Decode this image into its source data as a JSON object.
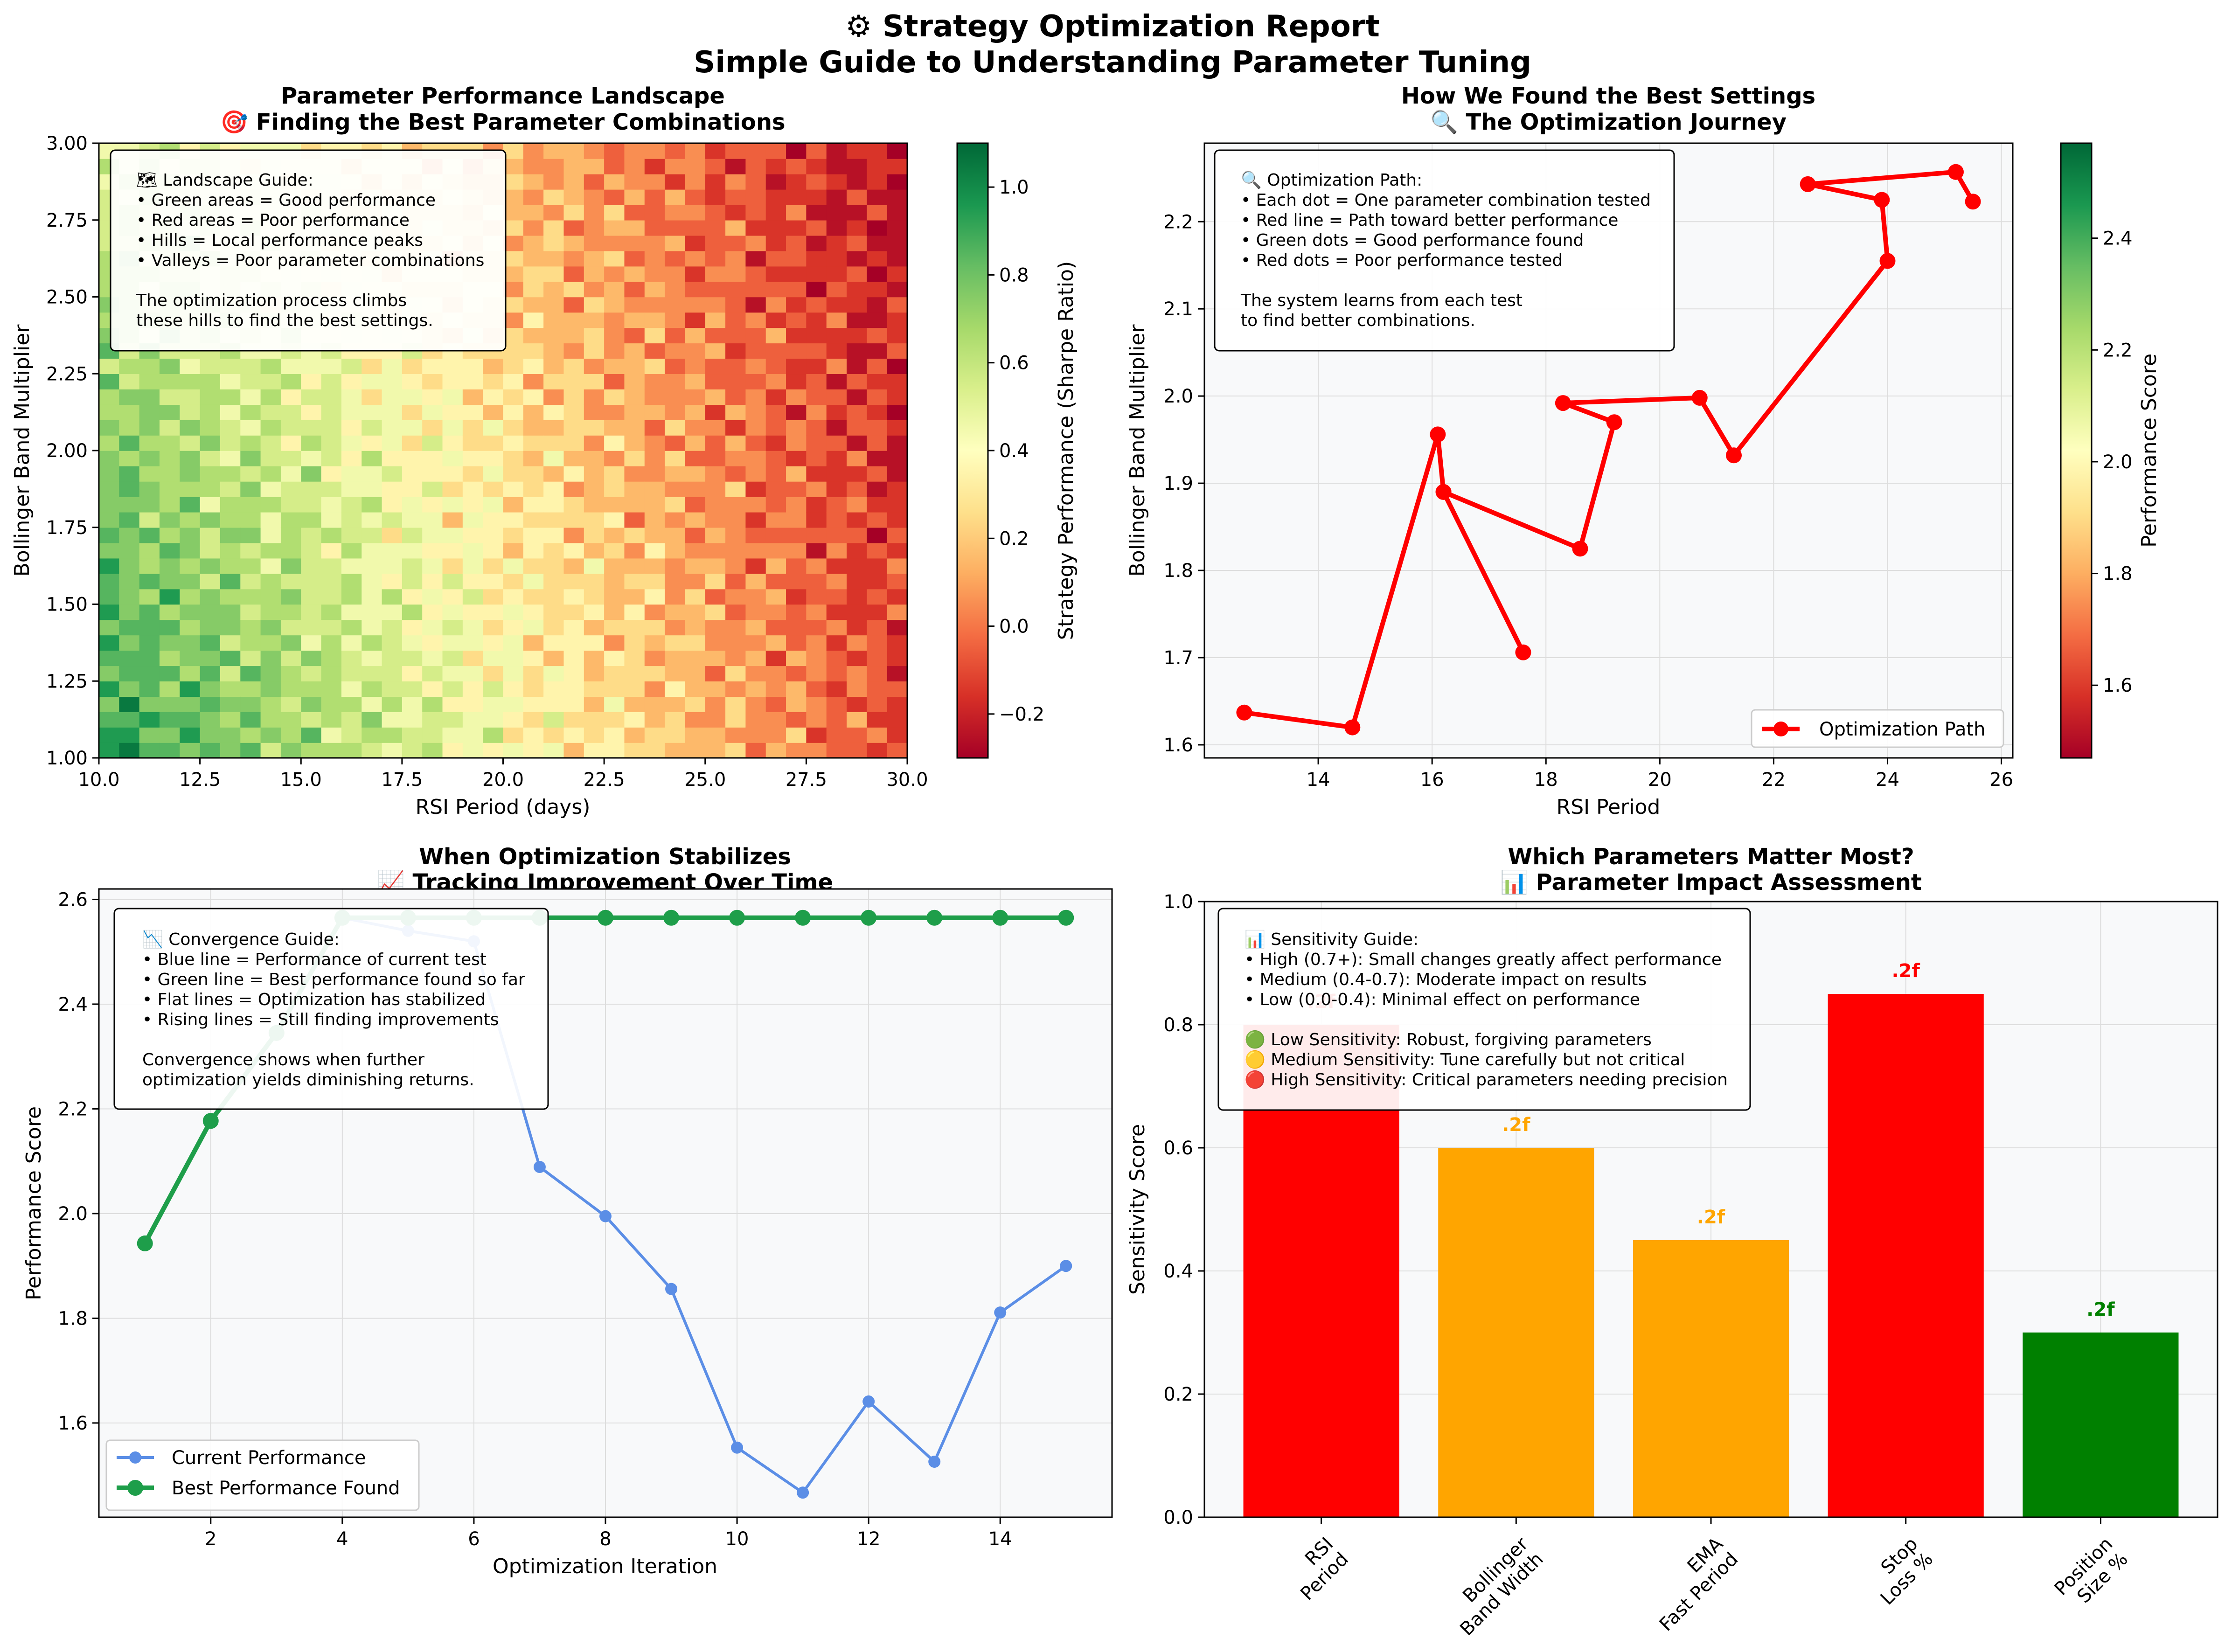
{
  "suptitle": {
    "line1": "⚙ Strategy Optimization Report",
    "line2": "Simple Guide to Understanding Parameter Tuning"
  },
  "colors": {
    "plot_bg": "#f8f9fa",
    "grid": "#dddddd",
    "path_red": "#ff0000",
    "current_blue": "#5b8ee6",
    "best_green": "#1e9e4a",
    "high": "#ff0000",
    "medium": "#ffa500",
    "low": "#008000",
    "colormap": [
      "#a50026",
      "#d73027",
      "#f46d43",
      "#fdae61",
      "#fee08b",
      "#ffffbf",
      "#d9ef8b",
      "#a6d96a",
      "#66bd63",
      "#1a9850",
      "#006837"
    ]
  },
  "panels": {
    "landscape": {
      "title1": "Parameter Performance Landscape",
      "title2": "🎯 Finding the Best Parameter Combinations",
      "xlabel": "RSI Period (days)",
      "ylabel": "Bollinger Band Multiplier",
      "colorbar_label": "Strategy Performance (Sharpe Ratio)",
      "info": [
        "🗺 Landscape Guide:",
        "• Green areas = Good performance",
        "• Red areas = Poor performance",
        "• Hills = Local performance peaks",
        "• Valleys = Poor parameter combinations",
        "",
        "The optimization process climbs",
        "these hills to find the best settings."
      ]
    },
    "path": {
      "title1": "How We Found the Best Settings",
      "title2": "🔍 The Optimization Journey",
      "xlabel": "RSI Period",
      "ylabel": "Bollinger Band Multiplier",
      "colorbar_label": "Performance Score",
      "legend": "Optimization Path",
      "info": [
        "🔍 Optimization Path:",
        "• Each dot = One parameter combination tested",
        "• Red line = Path toward better performance",
        "• Green dots = Good performance found",
        "• Red dots = Poor performance tested",
        "",
        "The system learns from each test",
        "to find better combinations."
      ]
    },
    "convergence": {
      "title1": "When Optimization Stabilizes",
      "title2": "📈 Tracking Improvement Over Time",
      "xlabel": "Optimization Iteration",
      "ylabel": "Performance Score",
      "legend_current": "Current Performance",
      "legend_best": "Best Performance Found",
      "info": [
        "📉 Convergence Guide:",
        "• Blue line = Performance of current test",
        "• Green line = Best performance found so far",
        "• Flat lines = Optimization has stabilized",
        "• Rising lines = Still finding improvements",
        "",
        "Convergence shows when further",
        "optimization yields diminishing returns."
      ]
    },
    "sensitivity": {
      "title1": "Which Parameters Matter Most?",
      "title2": "📊 Parameter Impact Assessment",
      "ylabel": "Sensitivity Score",
      "info": [
        "📊 Sensitivity Guide:",
        "• High (0.7+): Small changes greatly affect performance",
        "• Medium (0.4-0.7): Moderate impact on results",
        "• Low (0.0-0.4): Minimal effect on performance",
        "",
        "🟢 Low Sensitivity: Robust, forgiving parameters",
        "🟡 Medium Sensitivity: Tune carefully but not critical",
        "🔴 High Sensitivity: Critical parameters needing precision"
      ]
    }
  },
  "chart_data": [
    {
      "type": "heatmap",
      "title": "Parameter Performance Landscape",
      "xlabel": "RSI Period (days)",
      "ylabel": "Bollinger Band Multiplier",
      "xlim": [
        10,
        30
      ],
      "ylim": [
        1.0,
        3.0
      ],
      "xticks": [
        "10.0",
        "12.5",
        "15.0",
        "17.5",
        "20.0",
        "22.5",
        "25.0",
        "27.5",
        "30.0"
      ],
      "yticks": [
        "1.00",
        "1.25",
        "1.50",
        "1.75",
        "2.00",
        "2.25",
        "2.50",
        "2.75",
        "3.00"
      ],
      "colorbar_range": [
        -0.3,
        1.1
      ],
      "colorbar_ticks": [
        "−0.2",
        "0.0",
        "0.2",
        "0.4",
        "0.6",
        "0.8",
        "1.0"
      ],
      "description_free": true
    },
    {
      "type": "line",
      "title": "How We Found the Best Settings",
      "xlabel": "RSI Period",
      "ylabel": "Bollinger Band Multiplier",
      "xlim": [
        12.0,
        26.2
      ],
      "ylim": [
        1.585,
        2.29
      ],
      "xticks": [
        "14",
        "16",
        "18",
        "20",
        "22",
        "24",
        "26"
      ],
      "yticks": [
        "1.6",
        "1.7",
        "1.8",
        "1.9",
        "2.0",
        "2.1",
        "2.2"
      ],
      "colorbar_range": [
        1.47,
        2.57
      ],
      "colorbar_ticks": [
        "1.6",
        "1.8",
        "2.0",
        "2.2",
        "2.4"
      ],
      "series": [
        {
          "name": "Optimization Path",
          "x": [
            12.7,
            14.6,
            16.1,
            16.2,
            17.6,
            16.2,
            18.6,
            19.2,
            18.3,
            20.7,
            21.3,
            24.0,
            23.9,
            22.6,
            25.2,
            25.5
          ],
          "y": [
            1.637,
            1.62,
            1.956,
            1.89,
            1.706,
            1.89,
            1.825,
            1.97,
            1.992,
            1.998,
            1.932,
            2.155,
            2.225,
            2.243,
            2.257,
            2.223
          ]
        }
      ]
    },
    {
      "type": "line",
      "title": "When Optimization Stabilizes",
      "xlabel": "Optimization Iteration",
      "ylabel": "Performance Score",
      "xlim": [
        0.3,
        15.7
      ],
      "ylim": [
        1.42,
        2.62
      ],
      "xticks": [
        "2",
        "4",
        "6",
        "8",
        "10",
        "12",
        "14"
      ],
      "yticks": [
        "1.6",
        "1.8",
        "2.0",
        "2.2",
        "2.4",
        "2.6"
      ],
      "x": [
        1,
        2,
        3,
        4,
        5,
        6,
        7,
        8,
        9,
        10,
        11,
        12,
        13,
        14,
        15
      ],
      "series": [
        {
          "name": "Current Performance",
          "values": [
            1.943,
            2.177,
            2.345,
            2.565,
            2.54,
            2.52,
            2.089,
            1.995,
            1.856,
            1.553,
            1.467,
            1.641,
            1.526,
            1.811,
            1.9
          ]
        },
        {
          "name": "Best Performance Found",
          "values": [
            1.943,
            2.177,
            2.345,
            2.565,
            2.565,
            2.565,
            2.565,
            2.565,
            2.565,
            2.565,
            2.565,
            2.565,
            2.565,
            2.565,
            2.565
          ]
        }
      ]
    },
    {
      "type": "bar",
      "title": "Which Parameters Matter Most?",
      "ylabel": "Sensitivity Score",
      "ylim": [
        0,
        1.0
      ],
      "yticks": [
        "0.0",
        "0.2",
        "0.4",
        "0.6",
        "0.8",
        "1.0"
      ],
      "categories": [
        [
          "RSI",
          "Period"
        ],
        [
          "Bollinger",
          "Band Width"
        ],
        [
          "EMA",
          "Fast Period"
        ],
        [
          "Stop",
          "Loss %"
        ],
        [
          "Position",
          "Size %"
        ]
      ],
      "values": [
        0.8,
        0.6,
        0.45,
        0.85,
        0.3
      ],
      "colors": [
        "#ff0000",
        "#ffa500",
        "#ffa500",
        "#ff0000",
        "#008000"
      ],
      "labels": [
        ".2f",
        ".2f",
        ".2f",
        ".2f",
        ".2f"
      ]
    }
  ]
}
